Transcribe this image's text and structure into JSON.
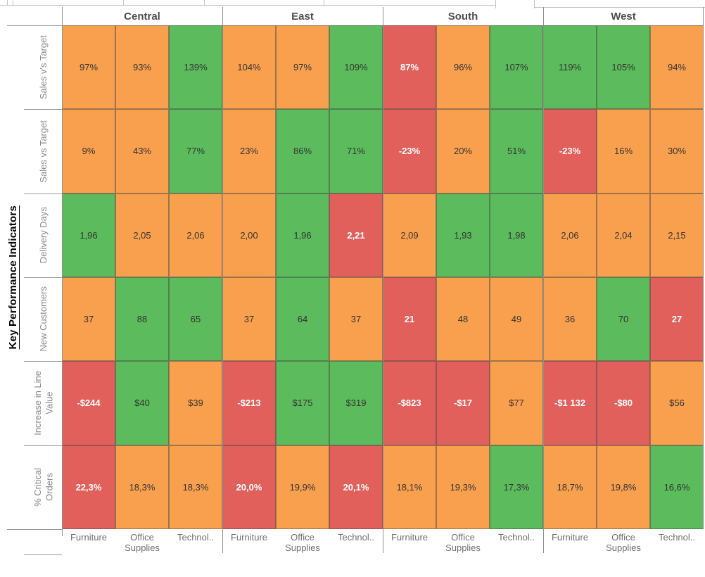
{
  "axis": {
    "title": "Key Performance Indicators",
    "kpi_labels": [
      "Sales v's Target",
      "Sales vs Target",
      "Delivery Days",
      "New Customers",
      "Increase in Line\nValue",
      "% Critical\nOrders"
    ]
  },
  "bottom_categories": [
    "Furniture",
    "Office Supplies",
    "Technol.."
  ],
  "colors": {
    "good": "#5cbb5c",
    "warn": "#f9a04e",
    "bad": "#e2605c",
    "cell_text": "#333333",
    "bad_text": "#ffffff"
  },
  "chart_data": {
    "type": "heatmap",
    "title": "",
    "row_axis_title": "Key Performance Indicators",
    "col_groups": [
      "Central",
      "East",
      "South",
      "West"
    ],
    "col_categories_per_group": [
      "Furniture",
      "Office Supplies",
      "Technol.."
    ],
    "color_encoding": {
      "good": "#5cbb5c",
      "warn": "#f9a04e",
      "bad": "#e2605c"
    },
    "rows": [
      {
        "label": "Sales v's Target",
        "cells": [
          {
            "label": "97%",
            "status": "warn"
          },
          {
            "label": "93%",
            "status": "warn"
          },
          {
            "label": "139%",
            "status": "good"
          },
          {
            "label": "104%",
            "status": "warn"
          },
          {
            "label": "97%",
            "status": "warn"
          },
          {
            "label": "109%",
            "status": "good"
          },
          {
            "label": "87%",
            "status": "bad"
          },
          {
            "label": "96%",
            "status": "warn"
          },
          {
            "label": "107%",
            "status": "good"
          },
          {
            "label": "119%",
            "status": "good"
          },
          {
            "label": "105%",
            "status": "good"
          },
          {
            "label": "94%",
            "status": "warn"
          }
        ]
      },
      {
        "label": "Sales vs Target",
        "cells": [
          {
            "label": "9%",
            "status": "warn"
          },
          {
            "label": "43%",
            "status": "warn"
          },
          {
            "label": "77%",
            "status": "good"
          },
          {
            "label": "23%",
            "status": "warn"
          },
          {
            "label": "86%",
            "status": "good"
          },
          {
            "label": "71%",
            "status": "good"
          },
          {
            "label": "-23%",
            "status": "bad"
          },
          {
            "label": "20%",
            "status": "warn"
          },
          {
            "label": "51%",
            "status": "good"
          },
          {
            "label": "-23%",
            "status": "bad"
          },
          {
            "label": "16%",
            "status": "warn"
          },
          {
            "label": "30%",
            "status": "warn"
          }
        ]
      },
      {
        "label": "Delivery Days",
        "cells": [
          {
            "label": "1,96",
            "status": "good"
          },
          {
            "label": "2,05",
            "status": "warn"
          },
          {
            "label": "2,06",
            "status": "warn"
          },
          {
            "label": "2,00",
            "status": "warn"
          },
          {
            "label": "1,96",
            "status": "good"
          },
          {
            "label": "2,21",
            "status": "bad"
          },
          {
            "label": "2,09",
            "status": "warn"
          },
          {
            "label": "1,93",
            "status": "good"
          },
          {
            "label": "1,98",
            "status": "good"
          },
          {
            "label": "2,06",
            "status": "warn"
          },
          {
            "label": "2,04",
            "status": "warn"
          },
          {
            "label": "2,15",
            "status": "warn"
          }
        ]
      },
      {
        "label": "New Customers",
        "cells": [
          {
            "label": "37",
            "status": "warn"
          },
          {
            "label": "88",
            "status": "good"
          },
          {
            "label": "65",
            "status": "good"
          },
          {
            "label": "37",
            "status": "warn"
          },
          {
            "label": "64",
            "status": "good"
          },
          {
            "label": "37",
            "status": "warn"
          },
          {
            "label": "21",
            "status": "bad"
          },
          {
            "label": "48",
            "status": "warn"
          },
          {
            "label": "49",
            "status": "warn"
          },
          {
            "label": "36",
            "status": "warn"
          },
          {
            "label": "70",
            "status": "good"
          },
          {
            "label": "27",
            "status": "bad"
          }
        ]
      },
      {
        "label": "Increase in Line Value",
        "cells": [
          {
            "label": "-$244",
            "status": "bad"
          },
          {
            "label": "$40",
            "status": "good"
          },
          {
            "label": "$39",
            "status": "warn"
          },
          {
            "label": "-$213",
            "status": "bad"
          },
          {
            "label": "$175",
            "status": "good"
          },
          {
            "label": "$319",
            "status": "good"
          },
          {
            "label": "-$823",
            "status": "bad"
          },
          {
            "label": "-$17",
            "status": "bad"
          },
          {
            "label": "$77",
            "status": "warn"
          },
          {
            "label": "-$1 132",
            "status": "bad"
          },
          {
            "label": "-$80",
            "status": "bad"
          },
          {
            "label": "$56",
            "status": "warn"
          }
        ]
      },
      {
        "label": "% Critical Orders",
        "cells": [
          {
            "label": "22,3%",
            "status": "bad"
          },
          {
            "label": "18,3%",
            "status": "warn"
          },
          {
            "label": "18,3%",
            "status": "warn"
          },
          {
            "label": "20,0%",
            "status": "bad"
          },
          {
            "label": "19,9%",
            "status": "warn"
          },
          {
            "label": "20,1%",
            "status": "bad"
          },
          {
            "label": "18,1%",
            "status": "warn"
          },
          {
            "label": "19,3%",
            "status": "warn"
          },
          {
            "label": "17,3%",
            "status": "good"
          },
          {
            "label": "18,7%",
            "status": "warn"
          },
          {
            "label": "19,8%",
            "status": "warn"
          },
          {
            "label": "16,6%",
            "status": "good"
          }
        ]
      }
    ]
  }
}
